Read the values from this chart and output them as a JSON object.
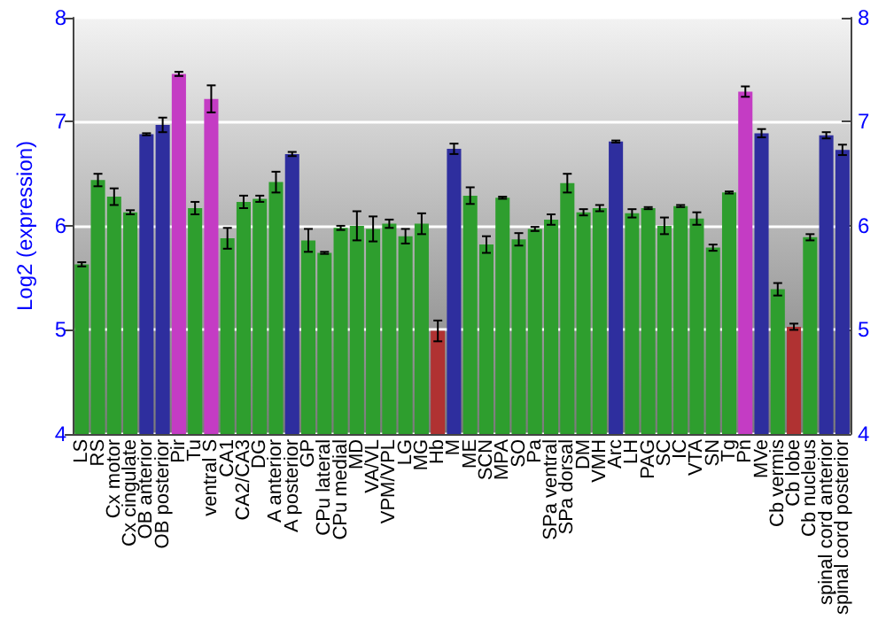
{
  "chart_data": {
    "type": "bar",
    "ylabel": "Log2 (expression)",
    "categories": [
      "LS",
      "RS",
      "Cx motor",
      "Cx cingulate",
      "OB anterior",
      "OB posterior",
      "Pir",
      "Tu",
      "ventral S",
      "CA1",
      "CA2/CA3",
      "DG",
      "A anterior",
      "A posterior",
      "GP",
      "CPu lateral",
      "CPu medial",
      "MD",
      "VA/VL",
      "VPM/VPL",
      "LG",
      "MG",
      "Hb",
      "M",
      "ME",
      "SCN",
      "MPA",
      "SO",
      "Pa",
      "SPa ventral",
      "SPa dorsal",
      "DM",
      "VMH",
      "Arc",
      "LH",
      "PAG",
      "SC",
      "IC",
      "VTA",
      "SN",
      "Tg",
      "Pn",
      "MVe",
      "Cb vermis",
      "Cb lobe",
      "Cb nucleus",
      "spinal cord anterior",
      "spinal cord posterior"
    ],
    "values": [
      5.63,
      6.44,
      6.28,
      6.13,
      6.88,
      6.97,
      7.46,
      6.17,
      7.22,
      5.88,
      6.23,
      6.26,
      6.42,
      6.69,
      5.86,
      5.74,
      5.98,
      6.0,
      5.97,
      6.02,
      5.9,
      6.02,
      4.99,
      6.74,
      6.29,
      5.82,
      6.27,
      5.87,
      5.97,
      6.06,
      6.41,
      6.13,
      6.17,
      6.81,
      6.12,
      6.17,
      6.0,
      6.19,
      6.07,
      5.79,
      6.32,
      7.29,
      6.89,
      5.39,
      5.03,
      5.89,
      6.87,
      6.73
    ],
    "errors": [
      0.02,
      0.06,
      0.08,
      0.02,
      0.01,
      0.07,
      0.02,
      0.06,
      0.13,
      0.1,
      0.06,
      0.03,
      0.1,
      0.02,
      0.11,
      0.01,
      0.02,
      0.14,
      0.12,
      0.04,
      0.07,
      0.1,
      0.1,
      0.05,
      0.08,
      0.08,
      0.01,
      0.06,
      0.02,
      0.05,
      0.09,
      0.03,
      0.03,
      0.01,
      0.04,
      0.01,
      0.08,
      0.01,
      0.06,
      0.03,
      0.01,
      0.05,
      0.04,
      0.06,
      0.03,
      0.03,
      0.03,
      0.05
    ],
    "colors": [
      "#2e9e2e",
      "#2e9e2e",
      "#2e9e2e",
      "#2e9e2e",
      "#2e2e9e",
      "#2e2e9e",
      "#c43cc4",
      "#2e9e2e",
      "#c43cc4",
      "#2e9e2e",
      "#2e9e2e",
      "#2e9e2e",
      "#2e9e2e",
      "#2e2e9e",
      "#2e9e2e",
      "#2e9e2e",
      "#2e9e2e",
      "#2e9e2e",
      "#2e9e2e",
      "#2e9e2e",
      "#2e9e2e",
      "#2e9e2e",
      "#b03232",
      "#2e2e9e",
      "#2e9e2e",
      "#2e9e2e",
      "#2e9e2e",
      "#2e9e2e",
      "#2e9e2e",
      "#2e9e2e",
      "#2e9e2e",
      "#2e9e2e",
      "#2e9e2e",
      "#2e2e9e",
      "#2e9e2e",
      "#2e9e2e",
      "#2e9e2e",
      "#2e9e2e",
      "#2e9e2e",
      "#2e9e2e",
      "#2e9e2e",
      "#c43cc4",
      "#2e2e9e",
      "#2e9e2e",
      "#b03232",
      "#2e9e2e",
      "#2e2e9e",
      "#2e2e9e"
    ],
    "ylim": [
      4,
      8
    ],
    "yticks": [
      4,
      5,
      6,
      7,
      8
    ],
    "y2lim": [
      4,
      8
    ],
    "y2ticks": [
      4,
      5,
      6,
      7,
      8
    ],
    "grid": "y"
  }
}
